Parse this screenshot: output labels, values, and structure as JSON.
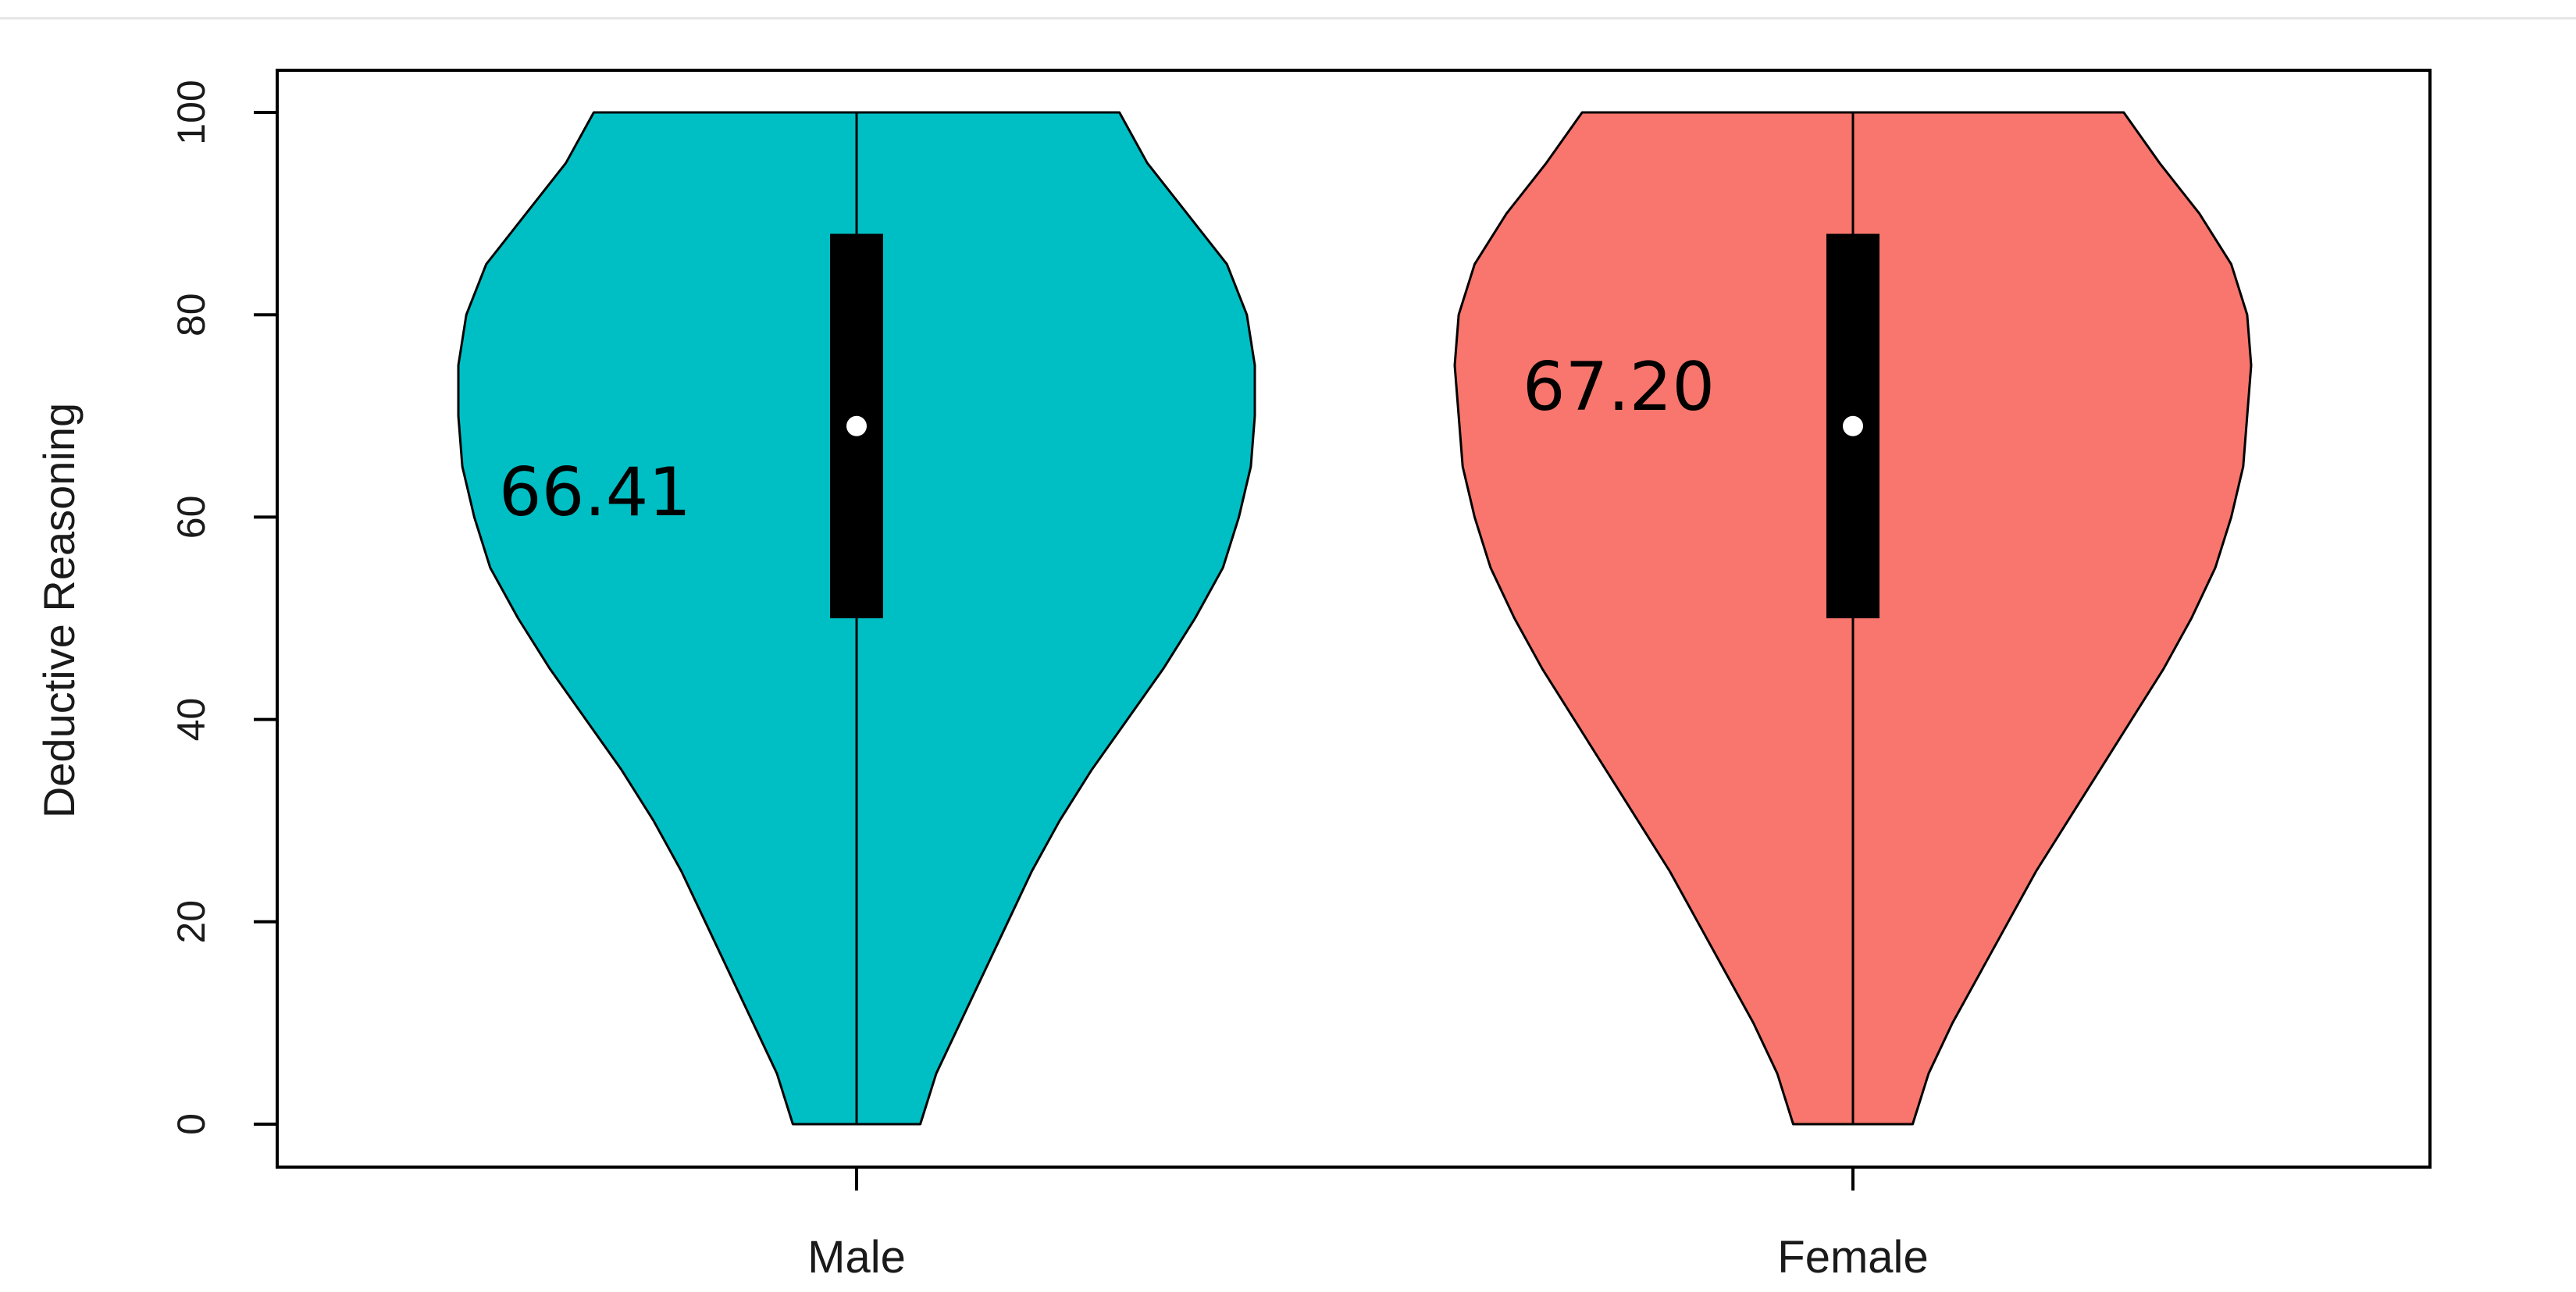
{
  "chart_data": {
    "type": "violin",
    "ylabel": "Deductive Reasoning",
    "ylim": [
      0,
      100
    ],
    "yticks": [
      0,
      20,
      40,
      60,
      80,
      100
    ],
    "grid": false,
    "categories": [
      "Male",
      "Female"
    ],
    "groups": [
      {
        "name": "Male",
        "color": "#00BFC4",
        "mean_label": "66.41",
        "min": 0,
        "q1": 50,
        "median": 69,
        "q3": 88,
        "max": 100,
        "density_profile": [
          [
            0,
            0.16
          ],
          [
            5,
            0.2
          ],
          [
            10,
            0.26
          ],
          [
            15,
            0.32
          ],
          [
            20,
            0.38
          ],
          [
            25,
            0.44
          ],
          [
            30,
            0.51
          ],
          [
            35,
            0.59
          ],
          [
            40,
            0.68
          ],
          [
            45,
            0.77
          ],
          [
            50,
            0.85
          ],
          [
            55,
            0.92
          ],
          [
            60,
            0.96
          ],
          [
            65,
            0.99
          ],
          [
            70,
            1.0
          ],
          [
            75,
            1.0
          ],
          [
            80,
            0.98
          ],
          [
            85,
            0.93
          ],
          [
            90,
            0.83
          ],
          [
            95,
            0.73
          ],
          [
            100,
            0.66
          ]
        ]
      },
      {
        "name": "Female",
        "color": "#F8766D",
        "mean_label": "67.20",
        "min": 0,
        "q1": 50,
        "median": 69,
        "q3": 88,
        "max": 100,
        "density_profile": [
          [
            0,
            0.15
          ],
          [
            5,
            0.19
          ],
          [
            10,
            0.25
          ],
          [
            15,
            0.32
          ],
          [
            20,
            0.39
          ],
          [
            25,
            0.46
          ],
          [
            30,
            0.54
          ],
          [
            35,
            0.62
          ],
          [
            40,
            0.7
          ],
          [
            45,
            0.78
          ],
          [
            50,
            0.85
          ],
          [
            55,
            0.91
          ],
          [
            60,
            0.95
          ],
          [
            65,
            0.98
          ],
          [
            70,
            0.99
          ],
          [
            75,
            1.0
          ],
          [
            80,
            0.99
          ],
          [
            85,
            0.95
          ],
          [
            90,
            0.87
          ],
          [
            95,
            0.77
          ],
          [
            100,
            0.68
          ]
        ]
      }
    ]
  }
}
